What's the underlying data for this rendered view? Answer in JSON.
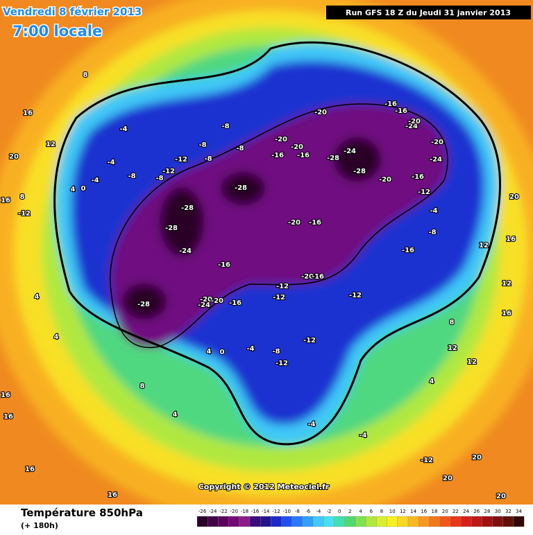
{
  "header": {
    "date": "Vendredi 8 février 2013",
    "time": "7:00 locale",
    "run": "Run GFS 18 Z du Jeudi 31 janvier 2013"
  },
  "map": {
    "copyright": "Copyright © 2012 Meteociel.fr",
    "contour_labels": [
      -28,
      -28,
      -28,
      -28,
      -28,
      -28,
      -24,
      -24,
      -24,
      -24,
      -24,
      -20,
      -20,
      -20,
      -20,
      -20,
      -20,
      -20,
      -20,
      -20,
      -20,
      -16,
      -16,
      -16,
      -16,
      -16,
      -16,
      -16,
      -16,
      -16,
      -16,
      -12,
      -12,
      -12,
      -12,
      -12,
      -12,
      -12,
      -12,
      -12,
      -12,
      -8,
      -8,
      -8,
      -8,
      -8,
      -8,
      -8,
      -8,
      -4,
      -4,
      -4,
      -4,
      -4,
      -4,
      -4,
      0,
      0,
      4,
      4,
      4,
      4,
      4,
      4,
      8,
      8,
      8,
      8,
      12,
      12,
      12,
      12,
      12,
      16,
      16,
      16,
      16,
      16,
      16,
      16,
      16,
      20,
      20,
      20,
      20,
      20
    ]
  },
  "footer": {
    "title": "Température 850hPa",
    "lead": "(+ 180h)"
  },
  "colorbar": {
    "labels": [
      -26,
      -24,
      -22,
      -20,
      -18,
      -16,
      -14,
      -12,
      -10,
      -8,
      -6,
      -4,
      -2,
      0,
      2,
      4,
      6,
      8,
      10,
      12,
      14,
      16,
      18,
      20,
      22,
      24,
      26,
      28,
      30,
      32,
      34
    ],
    "colors": [
      "#2a0028",
      "#440044",
      "#5c005c",
      "#740874",
      "#8c1a8c",
      "#3c0a7c",
      "#22148c",
      "#1c28c8",
      "#2050f0",
      "#2878f8",
      "#30a0f8",
      "#40c8f8",
      "#48e0f0",
      "#40e0b0",
      "#50d870",
      "#80e050",
      "#b0e840",
      "#d8f030",
      "#f8f020",
      "#f8d820",
      "#f8b820",
      "#f89820",
      "#f07818",
      "#f05818",
      "#e83818",
      "#d82018",
      "#c01818",
      "#a01010",
      "#801010",
      "#601008",
      "#300808"
    ]
  }
}
